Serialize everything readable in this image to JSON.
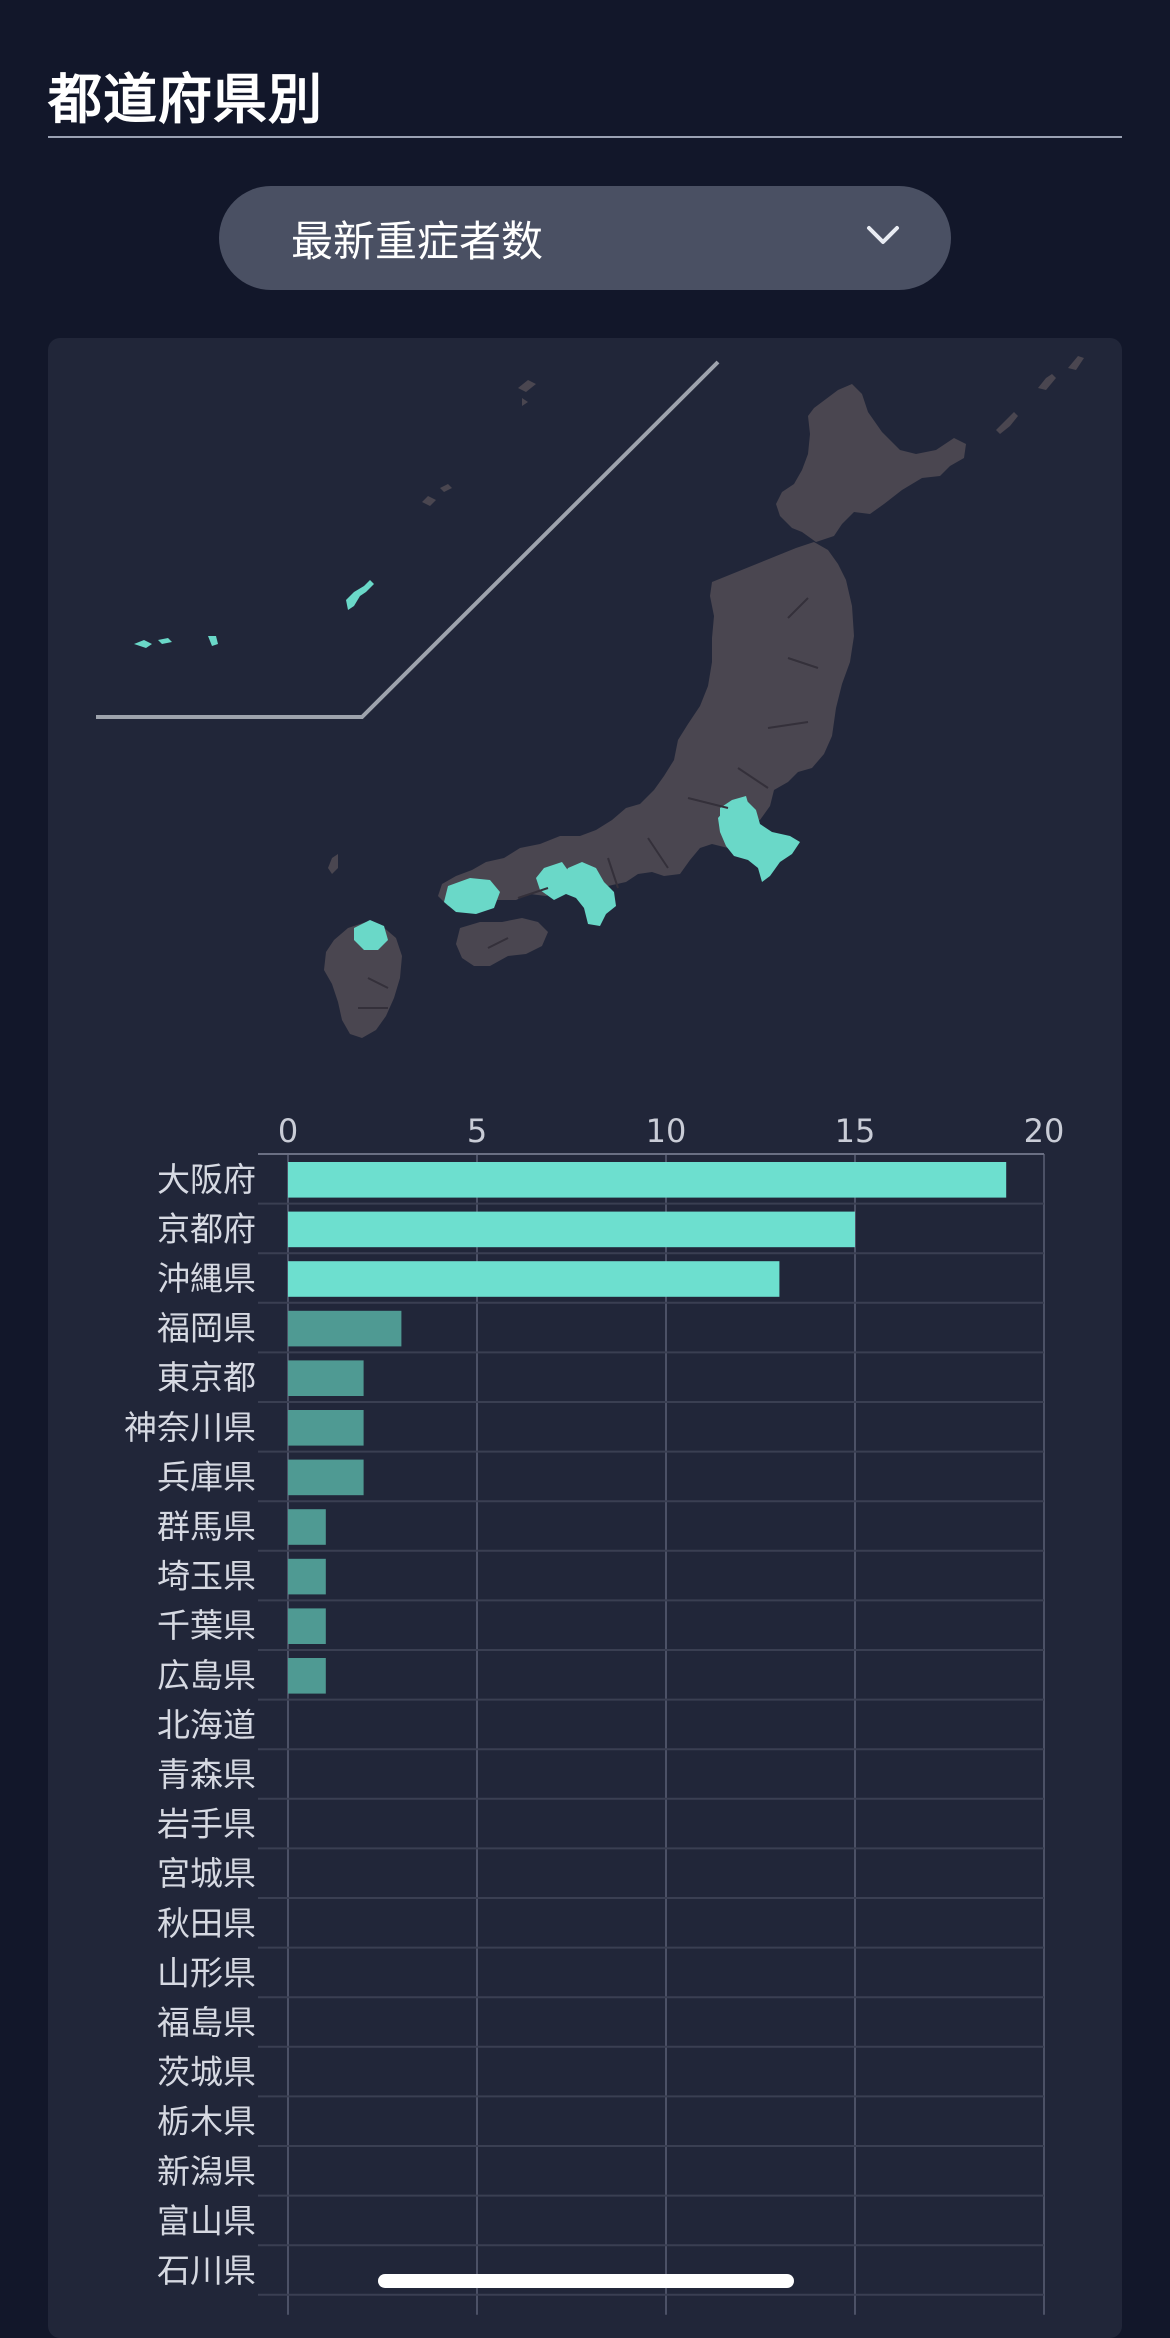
{
  "section": {
    "title": "都道府県別"
  },
  "dropdown": {
    "selected": "最新重症者数",
    "icon": "chevron-down-icon"
  },
  "colors": {
    "background": "#12172a",
    "card": "#212639",
    "bar_high": "#6ddfcf",
    "bar_low": "#4f9a93",
    "map_land": "#4a4650",
    "map_highlight": "#6ad8c8"
  },
  "chart_data": {
    "type": "bar",
    "orientation": "horizontal",
    "xlim": [
      0,
      20
    ],
    "ticks": [
      0,
      5,
      10,
      15,
      20
    ],
    "categories": [
      "大阪府",
      "京都府",
      "沖縄県",
      "福岡県",
      "東京都",
      "神奈川県",
      "兵庫県",
      "群馬県",
      "埼玉県",
      "千葉県",
      "広島県",
      "北海道",
      "青森県",
      "岩手県",
      "宮城県",
      "秋田県",
      "山形県",
      "福島県",
      "茨城県",
      "栃木県",
      "新潟県",
      "富山県",
      "石川県"
    ],
    "values": [
      19,
      15,
      13,
      3,
      2,
      2,
      2,
      1,
      1,
      1,
      1,
      0,
      0,
      0,
      0,
      0,
      0,
      0,
      0,
      0,
      0,
      0,
      0
    ],
    "grid": true
  }
}
